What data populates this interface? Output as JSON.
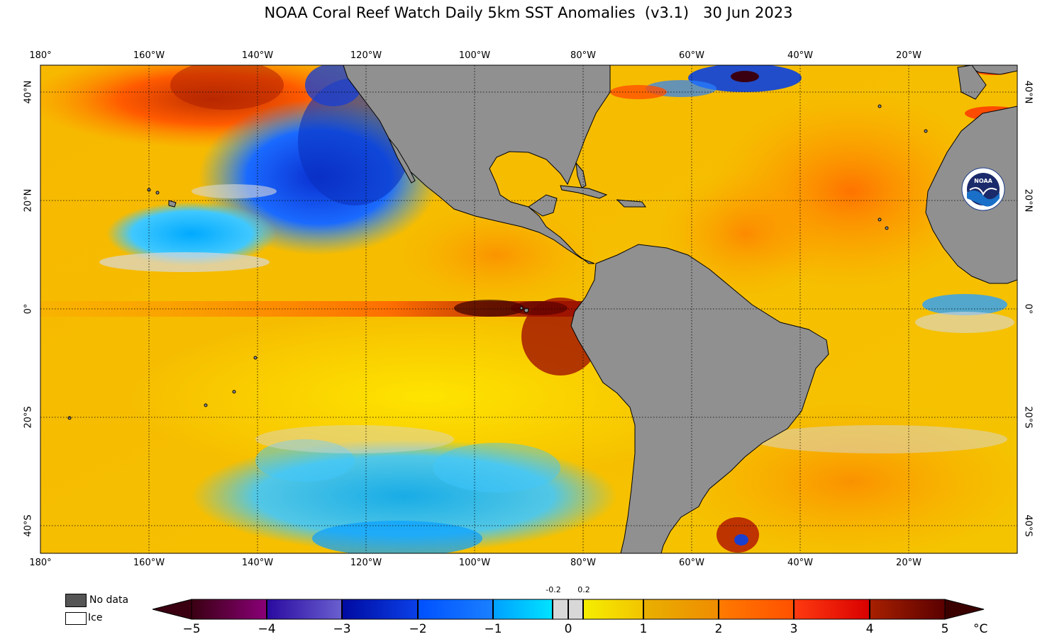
{
  "title": "NOAA Coral Reef Watch Daily 5km SST Anomalies  (v3.1)   30 Jun 2023",
  "axes": {
    "longitude_ticks": [
      "180°",
      "160°W",
      "140°W",
      "120°W",
      "100°W",
      "80°W",
      "60°W",
      "40°W",
      "20°W"
    ],
    "latitude_ticks": [
      "40°N",
      "20°N",
      "0°",
      "20°S",
      "40°S"
    ]
  },
  "legend": {
    "no_data_label": "No data",
    "ice_label": "Ice",
    "no_data_color": "#555555",
    "ice_color": "#ffffff"
  },
  "colorbar": {
    "tick_labels": [
      "−5",
      "−4",
      "−3",
      "−2",
      "−1",
      "0",
      "1",
      "2",
      "3",
      "4",
      "5"
    ],
    "small_labels": [
      "-0.2",
      "0.2"
    ],
    "unit": "°C",
    "range": [
      -5,
      5
    ],
    "colors": {
      "minus5": "#3a0012",
      "minus4": "#3a1a9a",
      "minus3": "#0a1fb8",
      "minus2": "#0050ff",
      "minus1": "#00b4ff",
      "neutral": "#d8d8d8",
      "plus1": "#f5e600",
      "plus2": "#f0a000",
      "plus3": "#ff6a00",
      "plus4": "#e21a00",
      "plus5": "#6a0000"
    }
  },
  "map": {
    "land_color": "#909090",
    "logo_text": "NOAA"
  }
}
